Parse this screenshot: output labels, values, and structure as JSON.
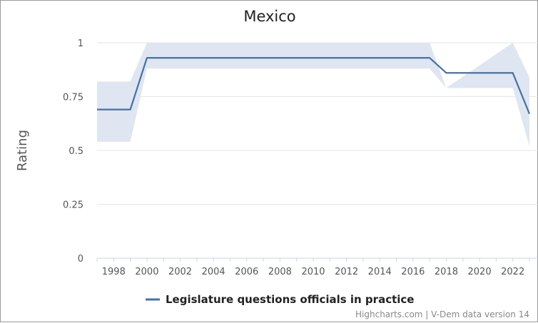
{
  "chart_data": {
    "type": "line",
    "title": "Mexico",
    "ylabel": "Rating",
    "xlabel": "",
    "ylim": [
      0,
      1
    ],
    "xlim": [
      1997,
      2023
    ],
    "yticks": [
      0,
      0.25,
      0.5,
      0.75,
      1
    ],
    "yticklabels": [
      "0",
      "0.25",
      "0.5",
      "0.75",
      "1"
    ],
    "xticks": [
      1998,
      2000,
      2002,
      2004,
      2006,
      2008,
      2010,
      2012,
      2014,
      2016,
      2018,
      2020,
      2022
    ],
    "xticklabels": [
      "1998",
      "2000",
      "2002",
      "2004",
      "2006",
      "2008",
      "2010",
      "2012",
      "2014",
      "2016",
      "2018",
      "2020",
      "2022"
    ],
    "grid": true,
    "legend_position": "bottom-center",
    "series": [
      {
        "name": "Legislature questions officials in practice",
        "color": "#4572a7",
        "x": [
          1997,
          1999,
          2000,
          2017,
          2018,
          2022,
          2023
        ],
        "values": [
          0.69,
          0.69,
          0.93,
          0.93,
          0.86,
          0.86,
          0.67
        ],
        "band_upper": [
          0.82,
          0.82,
          1.0,
          1.0,
          0.79,
          1.0,
          0.84
        ],
        "band_lower": [
          0.54,
          0.54,
          0.88,
          0.88,
          0.79,
          0.79,
          0.52
        ]
      }
    ],
    "band_color": "#dfe6f1",
    "credits": "Highcharts.com | V-Dem data version 14"
  }
}
